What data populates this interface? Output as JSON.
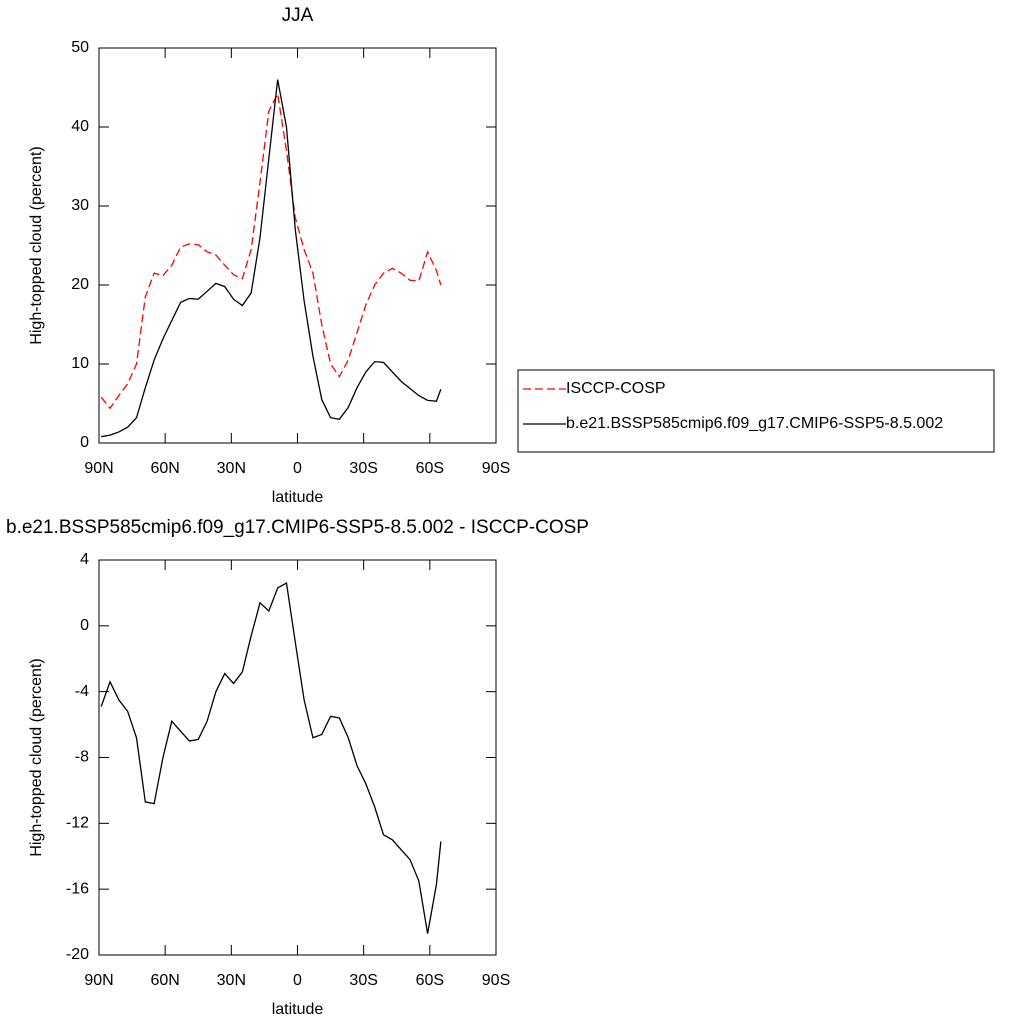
{
  "chart_data": [
    {
      "type": "line",
      "title": "JJA",
      "xlabel": "latitude",
      "ylabel": "High-topped cloud (percent)",
      "x": [
        89,
        85,
        81,
        77,
        73,
        69,
        65,
        61,
        57,
        53,
        49,
        45,
        41,
        37,
        33,
        29,
        25,
        21,
        17,
        13,
        9,
        5,
        1,
        -3,
        -7,
        -11,
        -15,
        -19,
        -23,
        -27,
        -31,
        -35,
        -39,
        -43,
        -47,
        -51,
        -55,
        -59,
        -63,
        -65
      ],
      "series": [
        {
          "name": "ISCCP-COSP",
          "color": "#ff0000",
          "line_style": "dashed",
          "values": [
            5.8,
            4.4,
            6.0,
            7.5,
            10,
            18.5,
            21.5,
            21.2,
            22.5,
            24.8,
            25.2,
            25.1,
            24.2,
            23.8,
            22.5,
            21.3,
            20.8,
            24.5,
            33,
            42,
            44.2,
            37,
            28.5,
            24.5,
            21.5,
            15,
            10,
            8.4,
            10.5,
            14,
            17.5,
            20,
            21.5,
            22.1,
            21.5,
            20.6,
            20.5,
            24.2,
            21.8,
            20
          ]
        },
        {
          "name": "b.e21.BSSP585cmip6.f09_g17.CMIP6-SSP5-8.5.002",
          "color": "#000000",
          "line_style": "solid",
          "values": [
            0.8,
            1.0,
            1.4,
            2.0,
            3.2,
            7,
            10.5,
            13.2,
            15.5,
            17.8,
            18.3,
            18.2,
            19.2,
            20.2,
            19.8,
            18.2,
            17.4,
            19,
            26,
            36,
            46,
            40,
            27,
            18,
            11,
            5.5,
            3.2,
            3.0,
            4.5,
            7,
            9,
            10.3,
            10.2,
            9,
            7.8,
            6.9,
            6.0,
            5.4,
            5.3,
            6.8
          ]
        }
      ],
      "xlim": [
        90,
        -90
      ],
      "xticks": [
        {
          "value": 90,
          "label": "90N"
        },
        {
          "value": 60,
          "label": "60N"
        },
        {
          "value": 30,
          "label": "30N"
        },
        0,
        {
          "value": -30,
          "label": "30S"
        },
        {
          "value": -60,
          "label": "60S"
        },
        {
          "value": -90,
          "label": "90S"
        }
      ],
      "ylim": [
        0,
        50
      ],
      "yticks": [
        0,
        10,
        20,
        30,
        40,
        50
      ],
      "legend": "right"
    },
    {
      "type": "line",
      "title": "b.e21.BSSP585cmip6.f09_g17.CMIP6-SSP5-8.5.002 - ISCCP-COSP",
      "xlabel": "latitude",
      "ylabel": "High-topped cloud (percent)",
      "x": [
        89,
        85,
        81,
        77,
        73,
        69,
        65,
        61,
        57,
        53,
        49,
        45,
        41,
        37,
        33,
        29,
        25,
        21,
        17,
        13,
        9,
        5,
        1,
        -3,
        -7,
        -11,
        -15,
        -19,
        -23,
        -27,
        -31,
        -35,
        -39,
        -43,
        -47,
        -51,
        -55,
        -59,
        -63,
        -65
      ],
      "values": [
        -4.9,
        -3.4,
        -4.5,
        -5.2,
        -6.8,
        -10.7,
        -10.8,
        -8,
        -5.8,
        -6.4,
        -7,
        -6.9,
        -5.8,
        -4.0,
        -2.9,
        -3.5,
        -2.8,
        -0.6,
        1.4,
        0.9,
        2.3,
        2.6,
        -1.0,
        -4.5,
        -6.8,
        -6.6,
        -5.5,
        -5.6,
        -6.8,
        -8.5,
        -9.6,
        -11,
        -12.7,
        -13.0,
        -13.6,
        -14.2,
        -15.5,
        -18.7,
        -15.7,
        -13.1
      ],
      "color": "#000000",
      "xlim": [
        90,
        -90
      ],
      "xticks": [
        {
          "value": 90,
          "label": "90N"
        },
        {
          "value": 60,
          "label": "60N"
        },
        {
          "value": 30,
          "label": "30N"
        },
        0,
        {
          "value": -30,
          "label": "30S"
        },
        {
          "value": -60,
          "label": "60S"
        },
        {
          "value": -90,
          "label": "90S"
        }
      ],
      "ylim": [
        -20,
        4
      ],
      "yticks": [
        -20,
        -16,
        -12,
        -8,
        -4,
        0,
        4
      ]
    }
  ]
}
